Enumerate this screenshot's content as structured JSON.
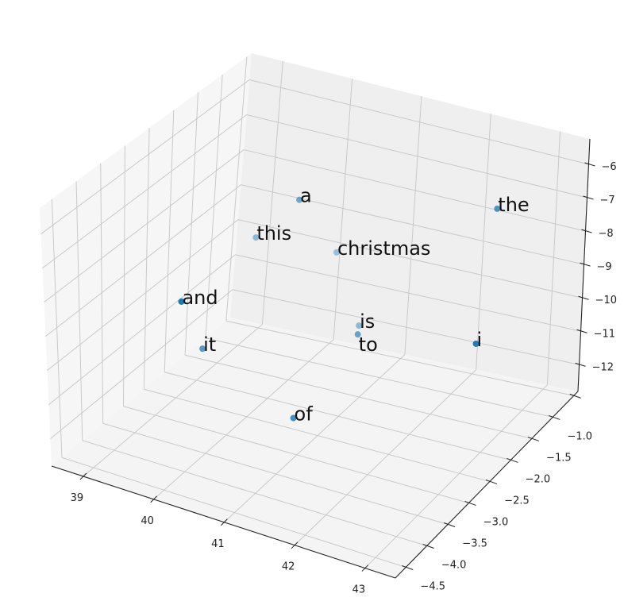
{
  "chart_data": {
    "type": "scatter",
    "projection": "3d",
    "title": "",
    "xlabel": "",
    "ylabel": "",
    "zlabel": "",
    "color": "#1f77b4",
    "depth_shading": true,
    "grid": true,
    "xlim": [
      38.55,
      43.43
    ],
    "ylim": [
      -4.75,
      -0.4
    ],
    "zlim": [
      -12.8,
      -5.24
    ],
    "xticks": [
      39,
      40,
      41,
      42,
      43
    ],
    "xtick_labels": [
      "39",
      "40",
      "41",
      "42",
      "43"
    ],
    "yticks": [
      -4.5,
      -4.0,
      -3.5,
      -3.0,
      -2.5,
      -2.0,
      -1.5,
      -1.0,
      -0.5
    ],
    "ytick_labels": [
      "−4.5",
      "−4.0",
      "−3.5",
      "−3.0",
      "−2.5",
      "−2.0",
      "−1.5",
      "−1.0",
      ""
    ],
    "zticks": [
      -12,
      -11,
      -10,
      -9,
      -8,
      -7,
      -6
    ],
    "ztick_labels": [
      "−12",
      "−11",
      "−10",
      "−9",
      "−8",
      "−7",
      "−6"
    ],
    "points": [
      {
        "label": "a",
        "x": 40.51,
        "y": -2.21,
        "z": -6.5
      },
      {
        "label": "the",
        "x": 42.56,
        "y": -1.03,
        "z": -7.0
      },
      {
        "label": "this",
        "x": 39.88,
        "y": -2.17,
        "z": -8.0
      },
      {
        "label": "christmas",
        "x": 40.51,
        "y": -1.34,
        "z": -9.0
      },
      {
        "label": "and",
        "x": 40.15,
        "y": -4.2,
        "z": -7.5
      },
      {
        "label": "is",
        "x": 40.85,
        "y": -1.31,
        "z": -11.0
      },
      {
        "label": "to",
        "x": 41.15,
        "y": -1.84,
        "z": -10.5
      },
      {
        "label": "it",
        "x": 39.87,
        "y": -3.33,
        "z": -10.0
      },
      {
        "label": "i",
        "x": 42.77,
        "y": -1.76,
        "z": -10.0
      },
      {
        "label": "of",
        "x": 40.85,
        "y": -2.83,
        "z": -12.0
      }
    ]
  }
}
